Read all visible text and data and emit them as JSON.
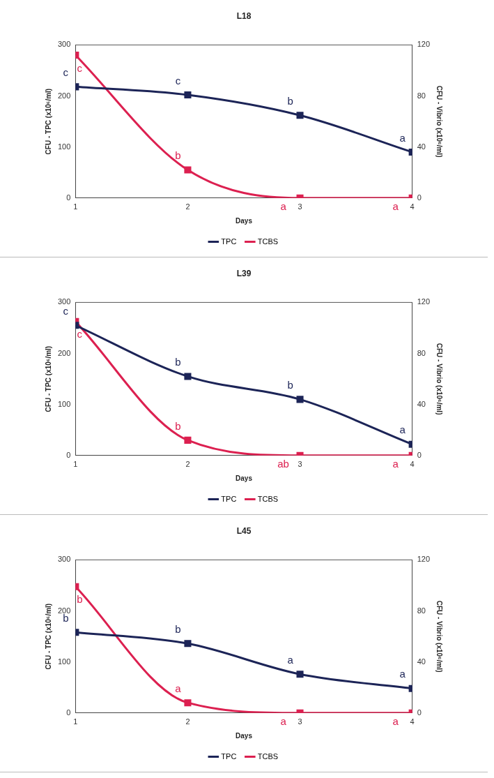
{
  "chart_data": [
    {
      "type": "line",
      "title": "L18",
      "xlabel": "Days",
      "ylabel": "CFU - TPC (x10⁶/ml)",
      "y2label": "CFU - Vibrio (x10⁶/ml)",
      "x": [
        1,
        2,
        3,
        4
      ],
      "xlim": [
        1,
        4
      ],
      "xticks": [
        1,
        2,
        3,
        4
      ],
      "ylim": [
        0,
        300
      ],
      "yticks": [
        0,
        100,
        200,
        300
      ],
      "y2lim": [
        0,
        120
      ],
      "y2ticks": [
        0,
        40,
        80,
        120
      ],
      "marker": "square",
      "legend": "bottom",
      "series": [
        {
          "name": "TPC",
          "color": "#1c2457",
          "values": [
            218,
            202,
            162,
            90
          ],
          "value_labels": [
            "c",
            "c",
            "b",
            "a"
          ]
        },
        {
          "name": "TCBS",
          "color": "#dc2050",
          "axis": "y2",
          "values": [
            112,
            22,
            0,
            0
          ],
          "value_labels": [
            "c",
            "b",
            "a",
            "a"
          ]
        }
      ]
    },
    {
      "type": "line",
      "title": "L39",
      "xlabel": "Days",
      "ylabel": "CFU - TPC (x10⁶/ml)",
      "y2label": "CFU - Vibrio (x10⁶/ml)",
      "x": [
        1,
        2,
        3,
        4
      ],
      "xlim": [
        1,
        4
      ],
      "xticks": [
        1,
        2,
        3,
        4
      ],
      "ylim": [
        0,
        300
      ],
      "yticks": [
        0,
        100,
        200,
        300
      ],
      "y2lim": [
        0,
        120
      ],
      "y2ticks": [
        0,
        40,
        80,
        120
      ],
      "marker": "square",
      "legend": "bottom",
      "series": [
        {
          "name": "TPC",
          "color": "#1c2457",
          "values": [
            255,
            155,
            110,
            22
          ],
          "value_labels": [
            "c",
            "b",
            "b",
            "a"
          ]
        },
        {
          "name": "TCBS",
          "color": "#dc2050",
          "axis": "y2",
          "values": [
            105,
            12,
            0,
            0
          ],
          "value_labels": [
            "c",
            "b",
            "ab",
            "a"
          ]
        }
      ]
    },
    {
      "type": "line",
      "title": "L45",
      "xlabel": "Days",
      "ylabel": "CFU - TPC (x10⁶/ml)",
      "y2label": "CFU - Vibrio (x10⁶/ml)",
      "x": [
        1,
        2,
        3,
        4
      ],
      "xlim": [
        1,
        4
      ],
      "xticks": [
        1,
        2,
        3,
        4
      ],
      "ylim": [
        0,
        300
      ],
      "yticks": [
        0,
        100,
        200,
        300
      ],
      "y2lim": [
        0,
        120
      ],
      "y2ticks": [
        0,
        40,
        80,
        120
      ],
      "marker": "square",
      "legend": "bottom",
      "series": [
        {
          "name": "TPC",
          "color": "#1c2457",
          "values": [
            158,
            136,
            76,
            48
          ],
          "value_labels": [
            "b",
            "b",
            "a",
            "a"
          ]
        },
        {
          "name": "TCBS",
          "color": "#dc2050",
          "axis": "y2",
          "values": [
            99,
            8,
            0,
            0
          ],
          "value_labels": [
            "b",
            "a",
            "a",
            "a"
          ]
        }
      ]
    }
  ]
}
